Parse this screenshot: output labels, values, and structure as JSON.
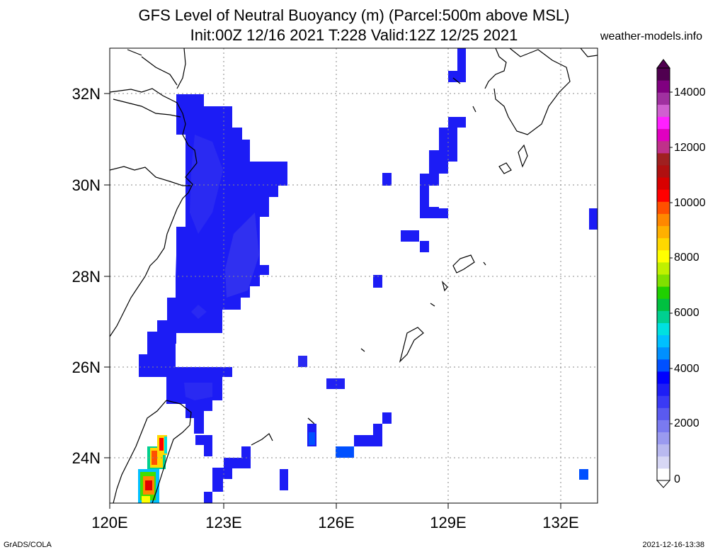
{
  "title_line1": "GFS Level of Neutral Buoyancy (m) (Parcel:500m above MSL)",
  "title_line2": "Init:00Z 12/16 2021 T:228 Valid:12Z 12/25 2021",
  "site": "weather-models.info",
  "footer_left": "GrADS/COLA",
  "footer_right": "2021-12-16-13:38",
  "lat_labels": [
    "32N",
    "30N",
    "28N",
    "26N",
    "24N"
  ],
  "lon_labels": [
    "120E",
    "123E",
    "126E",
    "129E",
    "132E"
  ],
  "colorbar": {
    "labels": [
      "14000",
      "12000",
      "10000",
      "8000",
      "6000",
      "4000",
      "2000",
      "0"
    ],
    "colors": [
      "#ffffff",
      "#d7d7f5",
      "#b9b9f0",
      "#9a9af0",
      "#7a7af0",
      "#5a5af0",
      "#3a3af5",
      "#1e1ef5",
      "#0000ff",
      "#0050ff",
      "#0090ff",
      "#00c0ff",
      "#00e0e0",
      "#00d090",
      "#00c040",
      "#20d000",
      "#80e000",
      "#c0f000",
      "#ffff00",
      "#ffd800",
      "#ffb000",
      "#ff8800",
      "#ff5000",
      "#ff0000",
      "#d80000",
      "#b01010",
      "#a02020",
      "#c0308a",
      "#e000c0",
      "#ff20ff",
      "#d060d0",
      "#a030a0",
      "#800080",
      "#500050"
    ]
  }
}
